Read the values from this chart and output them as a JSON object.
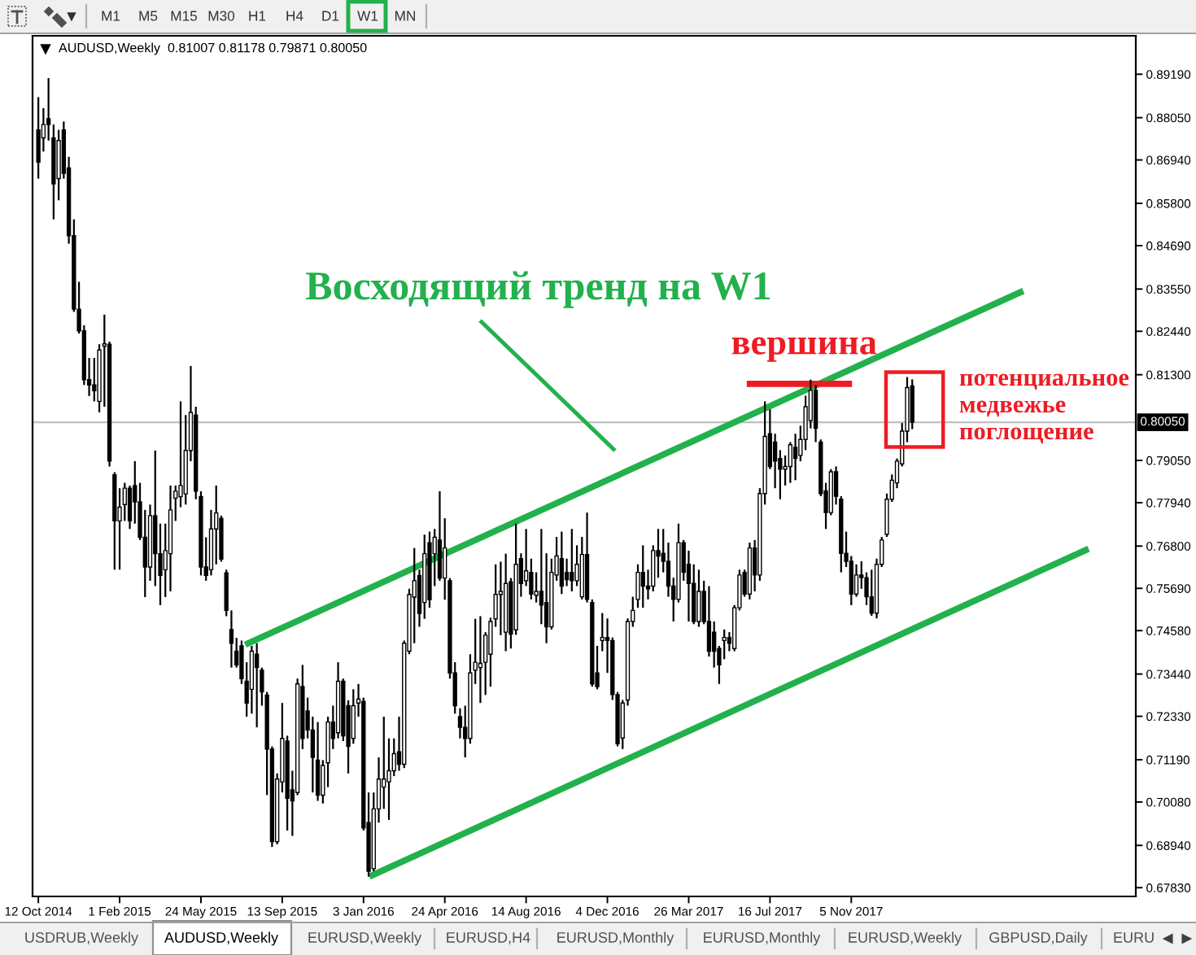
{
  "chart_data": {
    "type": "candlestick",
    "title": "AUDUSD,Weekly  0.81007 0.81178 0.79871 0.80050",
    "x": [
      "2014-10-12",
      "2014-10-19",
      "2014-10-26",
      "2014-11-02",
      "2014-11-09",
      "2014-11-16",
      "2014-11-23",
      "2014-11-30",
      "2014-12-07",
      "2014-12-14",
      "2014-12-21",
      "2014-12-28",
      "2015-01-04",
      "2015-01-11",
      "2015-01-18",
      "2015-01-25",
      "2015-02-01",
      "2015-02-08",
      "2015-02-15",
      "2015-02-22",
      "2015-03-01",
      "2015-03-08",
      "2015-03-15",
      "2015-03-22",
      "2015-03-29",
      "2015-04-05",
      "2015-04-12",
      "2015-04-19",
      "2015-04-26",
      "2015-05-03",
      "2015-05-10",
      "2015-05-17",
      "2015-05-24",
      "2015-05-31",
      "2015-06-07",
      "2015-06-14",
      "2015-06-21",
      "2015-06-28",
      "2015-07-05",
      "2015-07-12",
      "2015-07-19",
      "2015-07-26",
      "2015-08-02",
      "2015-08-09",
      "2015-08-16",
      "2015-08-23",
      "2015-08-30",
      "2015-09-06",
      "2015-09-13",
      "2015-09-20",
      "2015-09-27",
      "2015-10-04",
      "2015-10-11",
      "2015-10-18",
      "2015-10-25",
      "2015-11-01",
      "2015-11-08",
      "2015-11-15",
      "2015-11-22",
      "2015-11-29",
      "2015-12-06",
      "2015-12-13",
      "2015-12-20",
      "2015-12-27",
      "2016-01-03",
      "2016-01-10",
      "2016-01-17",
      "2016-01-24",
      "2016-01-31",
      "2016-02-07",
      "2016-02-14",
      "2016-02-21",
      "2016-02-28",
      "2016-03-06",
      "2016-03-13",
      "2016-03-20",
      "2016-03-27",
      "2016-04-03",
      "2016-04-10",
      "2016-04-17",
      "2016-04-24",
      "2016-05-01",
      "2016-05-08",
      "2016-05-15",
      "2016-05-22",
      "2016-05-29",
      "2016-06-05",
      "2016-06-12",
      "2016-06-19",
      "2016-06-26",
      "2016-07-03",
      "2016-07-10",
      "2016-07-17",
      "2016-07-24",
      "2016-07-31",
      "2016-08-07",
      "2016-08-14",
      "2016-08-21",
      "2016-08-28",
      "2016-09-04",
      "2016-09-11",
      "2016-09-18",
      "2016-09-25",
      "2016-10-02",
      "2016-10-09",
      "2016-10-16",
      "2016-10-23",
      "2016-10-30",
      "2016-11-06",
      "2016-11-13",
      "2016-11-20",
      "2016-11-27",
      "2016-12-04",
      "2016-12-11",
      "2016-12-18",
      "2016-12-25",
      "2017-01-01",
      "2017-01-08",
      "2017-01-15",
      "2017-01-22",
      "2017-01-29",
      "2017-02-05",
      "2017-02-12",
      "2017-02-19",
      "2017-02-26",
      "2017-03-05",
      "2017-03-12",
      "2017-03-19",
      "2017-03-26",
      "2017-04-02",
      "2017-04-09",
      "2017-04-16",
      "2017-04-23",
      "2017-04-30",
      "2017-05-07",
      "2017-05-14",
      "2017-05-21",
      "2017-05-28",
      "2017-06-04",
      "2017-06-11",
      "2017-06-18",
      "2017-06-25",
      "2017-07-02",
      "2017-07-09",
      "2017-07-16",
      "2017-07-23",
      "2017-07-30",
      "2017-08-06",
      "2017-08-13",
      "2017-08-20",
      "2017-08-27",
      "2017-09-03",
      "2017-09-10",
      "2017-09-17",
      "2017-09-24",
      "2017-10-01",
      "2017-10-08",
      "2017-10-15",
      "2017-10-22",
      "2017-10-29",
      "2017-11-05",
      "2017-11-12",
      "2017-11-19",
      "2017-11-26",
      "2017-12-03",
      "2017-12-10",
      "2017-12-17",
      "2017-12-24",
      "2017-12-31",
      "2018-01-07",
      "2018-01-14",
      "2018-01-21",
      "2018-01-28"
    ],
    "ohlc": [
      [
        0.8773,
        0.8859,
        0.8645,
        0.8688
      ],
      [
        0.8752,
        0.883,
        0.8716,
        0.8787
      ],
      [
        0.8802,
        0.8909,
        0.8745,
        0.8787
      ],
      [
        0.8752,
        0.8787,
        0.8538,
        0.8631
      ],
      [
        0.8645,
        0.8773,
        0.8588,
        0.8745
      ],
      [
        0.8773,
        0.8795,
        0.8645,
        0.8659
      ],
      [
        0.8673,
        0.8702,
        0.8474,
        0.8495
      ],
      [
        0.8495,
        0.8538,
        0.8295,
        0.8302
      ],
      [
        0.8302,
        0.8374,
        0.8238,
        0.8245
      ],
      [
        0.8245,
        0.826,
        0.8103,
        0.8117
      ],
      [
        0.8117,
        0.8174,
        0.8074,
        0.8103
      ],
      [
        0.8103,
        0.8174,
        0.806,
        0.8088
      ],
      [
        0.806,
        0.821,
        0.8031,
        0.8195
      ],
      [
        0.8205,
        0.8288,
        0.8046,
        0.8211
      ],
      [
        0.821,
        0.8217,
        0.7889,
        0.7903
      ],
      [
        0.7867,
        0.7874,
        0.7618,
        0.7746
      ],
      [
        0.7746,
        0.7832,
        0.7618,
        0.7782
      ],
      [
        0.7789,
        0.7846,
        0.7746,
        0.7832
      ],
      [
        0.7832,
        0.7839,
        0.7725,
        0.7746
      ],
      [
        0.7839,
        0.7903,
        0.7739,
        0.7796
      ],
      [
        0.7796,
        0.7846,
        0.7696,
        0.7703
      ],
      [
        0.7703,
        0.7775,
        0.7546,
        0.7625
      ],
      [
        0.7625,
        0.7789,
        0.7589,
        0.776
      ],
      [
        0.776,
        0.7931,
        0.7575,
        0.766
      ],
      [
        0.766,
        0.7739,
        0.7525,
        0.7603
      ],
      [
        0.7618,
        0.7739,
        0.7546,
        0.7668
      ],
      [
        0.766,
        0.7839,
        0.7561,
        0.7775
      ],
      [
        0.7806,
        0.7839,
        0.7746,
        0.7824
      ],
      [
        0.781,
        0.806,
        0.7782,
        0.7839
      ],
      [
        0.7817,
        0.8024,
        0.7789,
        0.7931
      ],
      [
        0.7931,
        0.8153,
        0.7903,
        0.8031
      ],
      [
        0.8024,
        0.8046,
        0.7803,
        0.7824
      ],
      [
        0.781,
        0.7824,
        0.7603,
        0.7625
      ],
      [
        0.7625,
        0.7703,
        0.7589,
        0.7603
      ],
      [
        0.7618,
        0.7775,
        0.7603,
        0.7725
      ],
      [
        0.7725,
        0.7839,
        0.7632,
        0.7767
      ],
      [
        0.7753,
        0.776,
        0.7639,
        0.7646
      ],
      [
        0.761,
        0.7618,
        0.7496,
        0.7511
      ],
      [
        0.7461,
        0.7511,
        0.7361,
        0.7425
      ],
      [
        0.7404,
        0.7439,
        0.7361,
        0.7368
      ],
      [
        0.7418,
        0.7432,
        0.7318,
        0.7332
      ],
      [
        0.7325,
        0.7375,
        0.7232,
        0.7268
      ],
      [
        0.7304,
        0.7418,
        0.724,
        0.7404
      ],
      [
        0.7396,
        0.7425,
        0.7204,
        0.7361
      ],
      [
        0.7354,
        0.7361,
        0.7261,
        0.7297
      ],
      [
        0.7289,
        0.7297,
        0.7026,
        0.7147
      ],
      [
        0.7147,
        0.7154,
        0.689,
        0.6904
      ],
      [
        0.6904,
        0.7083,
        0.6897,
        0.7068
      ],
      [
        0.7061,
        0.7268,
        0.7033,
        0.7175
      ],
      [
        0.7168,
        0.7182,
        0.6933,
        0.7018
      ],
      [
        0.704,
        0.709,
        0.6919,
        0.7011
      ],
      [
        0.7033,
        0.7332,
        0.7026,
        0.7318
      ],
      [
        0.7311,
        0.7368,
        0.7147,
        0.7175
      ],
      [
        0.7247,
        0.7282,
        0.7175,
        0.7197
      ],
      [
        0.7197,
        0.7232,
        0.7033,
        0.7125
      ],
      [
        0.7118,
        0.7218,
        0.7011,
        0.7026
      ],
      [
        0.7026,
        0.7118,
        0.7004,
        0.7104
      ],
      [
        0.7111,
        0.7232,
        0.7047,
        0.7218
      ],
      [
        0.7218,
        0.7261,
        0.7147,
        0.7175
      ],
      [
        0.719,
        0.7375,
        0.7175,
        0.7325
      ],
      [
        0.7325,
        0.7332,
        0.7168,
        0.7182
      ],
      [
        0.7261,
        0.7275,
        0.7083,
        0.7154
      ],
      [
        0.7175,
        0.7304,
        0.7161,
        0.7261
      ],
      [
        0.7268,
        0.7318,
        0.7232,
        0.7278
      ],
      [
        0.7272,
        0.7282,
        0.6933,
        0.694
      ],
      [
        0.6954,
        0.7033,
        0.6812,
        0.6826
      ],
      [
        0.6833,
        0.7033,
        0.6826,
        0.699
      ],
      [
        0.699,
        0.7125,
        0.6954,
        0.7068
      ],
      [
        0.7047,
        0.7232,
        0.699,
        0.7068
      ],
      [
        0.7061,
        0.7175,
        0.6961,
        0.709
      ],
      [
        0.709,
        0.7175,
        0.7076,
        0.7135
      ],
      [
        0.714,
        0.7232,
        0.709,
        0.7107
      ],
      [
        0.7107,
        0.7432,
        0.7097,
        0.7425
      ],
      [
        0.7404,
        0.7568,
        0.7396,
        0.7553
      ],
      [
        0.7546,
        0.7675,
        0.7425,
        0.7589
      ],
      [
        0.7603,
        0.7618,
        0.7468,
        0.7503
      ],
      [
        0.7532,
        0.771,
        0.7489,
        0.766
      ],
      [
        0.7689,
        0.7718,
        0.7518,
        0.7539
      ],
      [
        0.766,
        0.7725,
        0.7575,
        0.7703
      ],
      [
        0.7696,
        0.7824,
        0.7589,
        0.7596
      ],
      [
        0.7596,
        0.7753,
        0.7539,
        0.7675
      ],
      [
        0.7589,
        0.7596,
        0.7332,
        0.7347
      ],
      [
        0.7347,
        0.7375,
        0.724,
        0.7261
      ],
      [
        0.7232,
        0.7254,
        0.7175,
        0.7204
      ],
      [
        0.7204,
        0.7261,
        0.7125,
        0.7175
      ],
      [
        0.7175,
        0.7396,
        0.7161,
        0.7347
      ],
      [
        0.7354,
        0.7489,
        0.7318,
        0.7375
      ],
      [
        0.7361,
        0.7496,
        0.7268,
        0.7372
      ],
      [
        0.7375,
        0.7454,
        0.7289,
        0.7446
      ],
      [
        0.7396,
        0.7492,
        0.7311,
        0.7482
      ],
      [
        0.7489,
        0.7632,
        0.7468,
        0.7553
      ],
      [
        0.7553,
        0.7639,
        0.7446,
        0.7561
      ],
      [
        0.7454,
        0.766,
        0.7404,
        0.7582
      ],
      [
        0.7586,
        0.7596,
        0.7411,
        0.7449
      ],
      [
        0.746,
        0.7739,
        0.7447,
        0.7632
      ],
      [
        0.7647,
        0.7661,
        0.7547,
        0.7582
      ],
      [
        0.7589,
        0.7725,
        0.7575,
        0.7615
      ],
      [
        0.7611,
        0.7647,
        0.754,
        0.7554
      ],
      [
        0.7551,
        0.7611,
        0.7532,
        0.7561
      ],
      [
        0.7561,
        0.7725,
        0.7475,
        0.7525
      ],
      [
        0.7532,
        0.7661,
        0.7425,
        0.7468
      ],
      [
        0.7468,
        0.7647,
        0.7461,
        0.7611
      ],
      [
        0.7604,
        0.7704,
        0.7589,
        0.7654
      ],
      [
        0.7647,
        0.7718,
        0.7554,
        0.7575
      ],
      [
        0.7611,
        0.7647,
        0.7575,
        0.7592
      ],
      [
        0.7611,
        0.7725,
        0.7561,
        0.7589
      ],
      [
        0.7589,
        0.7682,
        0.7575,
        0.7632
      ],
      [
        0.7547,
        0.7704,
        0.754,
        0.7658
      ],
      [
        0.7658,
        0.7768,
        0.7532,
        0.754
      ],
      [
        0.7532,
        0.754,
        0.7311,
        0.7318
      ],
      [
        0.7347,
        0.7418,
        0.7304,
        0.7311
      ],
      [
        0.7432,
        0.7504,
        0.7404,
        0.744
      ],
      [
        0.744,
        0.749,
        0.7347,
        0.7432
      ],
      [
        0.7432,
        0.744,
        0.7276,
        0.729
      ],
      [
        0.729,
        0.7297,
        0.7154,
        0.7161
      ],
      [
        0.7176,
        0.7276,
        0.7147,
        0.7268
      ],
      [
        0.7276,
        0.749,
        0.7261,
        0.7482
      ],
      [
        0.7482,
        0.7547,
        0.7468,
        0.7511
      ],
      [
        0.754,
        0.7632,
        0.7518,
        0.7611
      ],
      [
        0.7611,
        0.7682,
        0.7518,
        0.7575
      ],
      [
        0.7575,
        0.7618,
        0.754,
        0.7568
      ],
      [
        0.7575,
        0.7682,
        0.7561,
        0.7668
      ],
      [
        0.7668,
        0.7725,
        0.7597,
        0.7654
      ],
      [
        0.7661,
        0.7725,
        0.7611,
        0.764
      ],
      [
        0.764,
        0.7689,
        0.7547,
        0.7575
      ],
      [
        0.7575,
        0.7597,
        0.7482,
        0.754
      ],
      [
        0.754,
        0.7739,
        0.7532,
        0.7689
      ],
      [
        0.7689,
        0.7696,
        0.7589,
        0.7611
      ],
      [
        0.7632,
        0.7668,
        0.7482,
        0.7582
      ],
      [
        0.7582,
        0.7632,
        0.7475,
        0.7482
      ],
      [
        0.7482,
        0.7618,
        0.7468,
        0.7561
      ],
      [
        0.7561,
        0.7589,
        0.7475,
        0.7482
      ],
      [
        0.7482,
        0.7575,
        0.739,
        0.7404
      ],
      [
        0.7454,
        0.7482,
        0.7361,
        0.7404
      ],
      [
        0.7411,
        0.7418,
        0.7318,
        0.7368
      ],
      [
        0.7432,
        0.7461,
        0.7383,
        0.744
      ],
      [
        0.744,
        0.7454,
        0.7404,
        0.7425
      ],
      [
        0.7411,
        0.7525,
        0.7404,
        0.7518
      ],
      [
        0.7518,
        0.7618,
        0.7511,
        0.7604
      ],
      [
        0.7611,
        0.7618,
        0.7547,
        0.7554
      ],
      [
        0.7554,
        0.7689,
        0.754,
        0.7675
      ],
      [
        0.7675,
        0.7696,
        0.7561,
        0.7604
      ],
      [
        0.7604,
        0.7832,
        0.7589,
        0.7818
      ],
      [
        0.7818,
        0.806,
        0.7789,
        0.7968
      ],
      [
        0.7975,
        0.8039,
        0.7882,
        0.7889
      ],
      [
        0.7953,
        0.7975,
        0.7832,
        0.7903
      ],
      [
        0.791,
        0.7932,
        0.7803,
        0.7882
      ],
      [
        0.7882,
        0.7918,
        0.7839,
        0.7889
      ],
      [
        0.7889,
        0.7953,
        0.7846,
        0.7946
      ],
      [
        0.7939,
        0.7975,
        0.7853,
        0.791
      ],
      [
        0.7918,
        0.7996,
        0.7903,
        0.796
      ],
      [
        0.796,
        0.8075,
        0.7932,
        0.8046
      ],
      [
        0.801,
        0.8117,
        0.7989,
        0.8089
      ],
      [
        0.8089,
        0.8103,
        0.7953,
        0.7989
      ],
      [
        0.7953,
        0.796,
        0.7811,
        0.7818
      ],
      [
        0.7825,
        0.7846,
        0.7725,
        0.7768
      ],
      [
        0.7768,
        0.7882,
        0.7761,
        0.7875
      ],
      [
        0.7875,
        0.7889,
        0.7789,
        0.7811
      ],
      [
        0.7803,
        0.7811,
        0.7611,
        0.7661
      ],
      [
        0.7661,
        0.7718,
        0.7625,
        0.764
      ],
      [
        0.764,
        0.7654,
        0.7525,
        0.7554
      ],
      [
        0.7554,
        0.7632,
        0.7547,
        0.7604
      ],
      [
        0.7604,
        0.764,
        0.7568,
        0.7597
      ],
      [
        0.7597,
        0.7611,
        0.7525,
        0.7547
      ],
      [
        0.7547,
        0.7618,
        0.7497,
        0.7504
      ],
      [
        0.7504,
        0.7647,
        0.749,
        0.7632
      ],
      [
        0.7632,
        0.7704,
        0.7625,
        0.7696
      ],
      [
        0.7711,
        0.7818,
        0.7704,
        0.7803
      ],
      [
        0.7803,
        0.7868,
        0.7796,
        0.7853
      ],
      [
        0.7846,
        0.791,
        0.7832,
        0.7903
      ],
      [
        0.7896,
        0.8003,
        0.7889,
        0.7982
      ],
      [
        0.7982,
        0.8124,
        0.7953,
        0.8096
      ],
      [
        0.81007,
        0.81178,
        0.79871,
        0.8005
      ]
    ],
    "series": [
      {
        "type": "line",
        "color": "#22b14c",
        "x": [
          "2015-07-24",
          "2018-06-30"
        ],
        "values": [
          0.7421,
          0.835
        ]
      },
      {
        "type": "line",
        "color": "#22b14c",
        "x": [
          "2016-01-11",
          "2018-09-28"
        ],
        "values": [
          0.6812,
          0.7673
        ]
      },
      {
        "type": "line",
        "color": "#ed1c24",
        "x": [
          "2017-06-14",
          "2017-11-06"
        ],
        "values": [
          0.8106,
          0.8106
        ]
      }
    ],
    "xlim": [
      "2014-10-04",
      "2018-12-02"
    ],
    "xticks": [
      {
        "value": "2014-10-12",
        "label": "12 Oct 2014"
      },
      {
        "value": "2015-02-01",
        "label": "1 Feb 2015"
      },
      {
        "value": "2015-05-24",
        "label": "24 May 2015"
      },
      {
        "value": "2015-09-13",
        "label": "13 Sep 2015"
      },
      {
        "value": "2016-01-03",
        "label": "3 Jan 2016"
      },
      {
        "value": "2016-04-24",
        "label": "24 Apr 2016"
      },
      {
        "value": "2016-08-14",
        "label": "14 Aug 2016"
      },
      {
        "value": "2016-12-04",
        "label": "4 Dec 2016"
      },
      {
        "value": "2017-03-26",
        "label": "26 Mar 2017"
      },
      {
        "value": "2017-07-16",
        "label": "16 Jul 2017"
      },
      {
        "value": "2017-11-05",
        "label": "5 Nov 2017"
      }
    ],
    "ylim": [
      0.676,
      0.902
    ],
    "yticks": [
      {
        "value": 0.8919,
        "label": "0.89190"
      },
      {
        "value": 0.8805,
        "label": "0.88050"
      },
      {
        "value": 0.8694,
        "label": "0.86940"
      },
      {
        "value": 0.858,
        "label": "0.85800"
      },
      {
        "value": 0.8469,
        "label": "0.84690"
      },
      {
        "value": 0.8355,
        "label": "0.83550"
      },
      {
        "value": 0.8244,
        "label": "0.82440"
      },
      {
        "value": 0.813,
        "label": "0.81300"
      },
      {
        "value": 0.7905,
        "label": "0.79050"
      },
      {
        "value": 0.7794,
        "label": "0.77940"
      },
      {
        "value": 0.768,
        "label": "0.76800"
      },
      {
        "value": 0.7569,
        "label": "0.75690"
      },
      {
        "value": 0.7458,
        "label": "0.74580"
      },
      {
        "value": 0.7344,
        "label": "0.73440"
      },
      {
        "value": 0.7233,
        "label": "0.72330"
      },
      {
        "value": 0.7119,
        "label": "0.71190"
      },
      {
        "value": 0.7008,
        "label": "0.70080"
      },
      {
        "value": 0.6894,
        "label": "0.68940"
      },
      {
        "value": 0.6783,
        "label": "0.67830"
      }
    ],
    "ref_lines": [
      {
        "axis": "y",
        "value": 0.8005,
        "label": "0.80050",
        "color": "#c0c0c0"
      }
    ],
    "annotations": [
      "Восходящий тренд на W1",
      {
        "text": "вершина",
        "x": "2017-09-01",
        "y": 0.8106
      },
      {
        "text": "потенциальное\nмедвежье\nпоглощение",
        "x": "2018-01-21",
        "y": 0.8124
      },
      "M1",
      "M5",
      "M15",
      "M30",
      "H1",
      "H4",
      "D1",
      "W1",
      "MN",
      "USDRUB,Weekly",
      "AUDUSD,Weekly",
      "EURUSD,Weekly",
      "EURUSD,H4",
      "EURUSD,Monthly",
      "EURUSD,Monthly",
      "EURUSD,Weekly",
      "GBPUSD,Daily",
      "EURU"
    ]
  }
}
